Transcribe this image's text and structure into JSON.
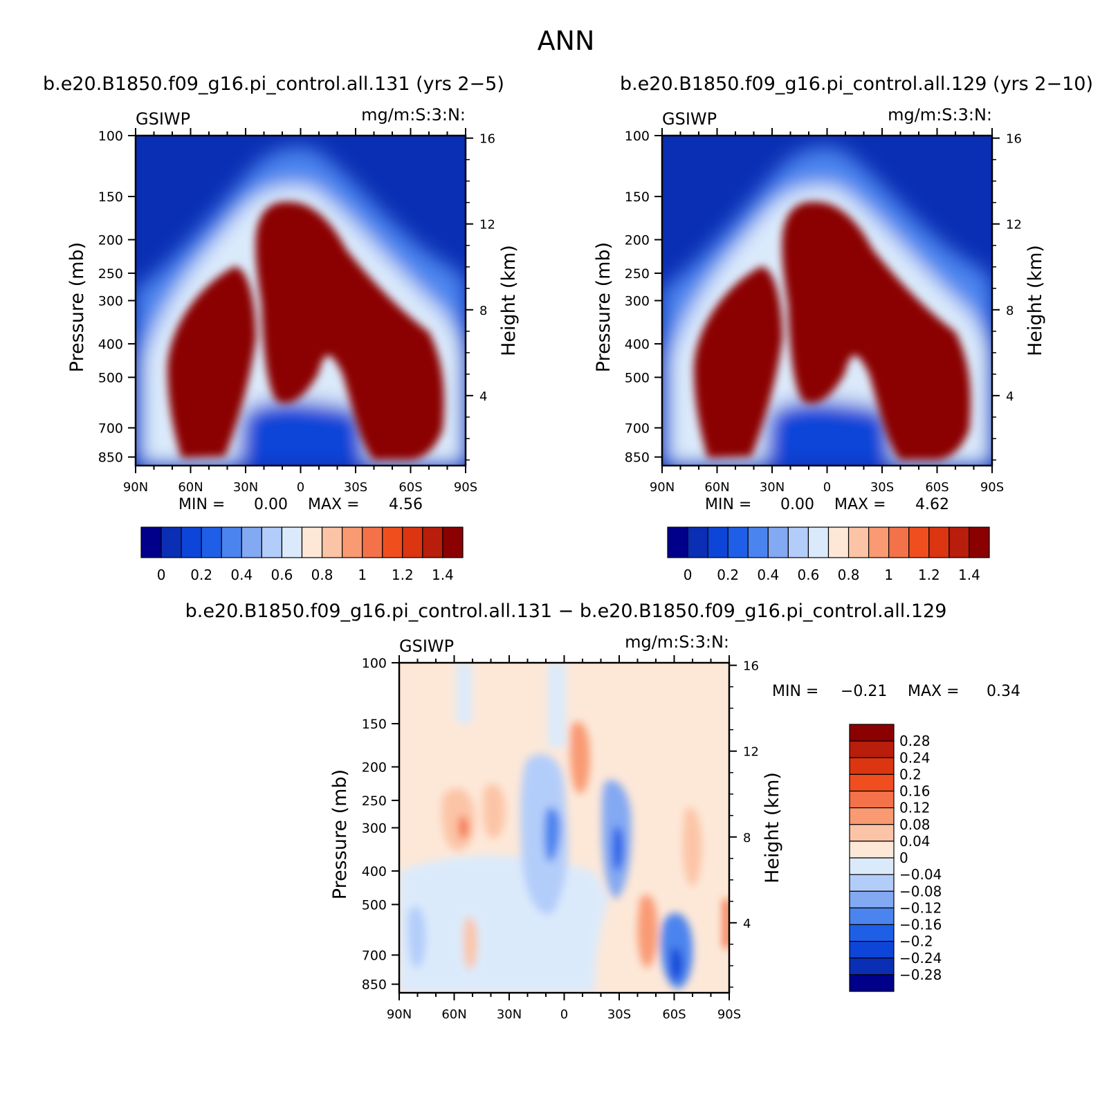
{
  "figure": {
    "title": "ANN"
  },
  "chart_data": [
    {
      "type": "heatmap",
      "title": "b.e20.B1850.f09_g16.pi_control.all.131 (yrs 2−5)",
      "left_label": "GSIWP",
      "right_label": "mg/m:S:3:N:",
      "xlabel": "",
      "ylabel": "Pressure (mb)",
      "y2label": "Height (km)",
      "x_ticks": [
        "90N",
        "60N",
        "30N",
        "0",
        "30S",
        "60S",
        "90S"
      ],
      "y_ticks": [
        100,
        150,
        200,
        250,
        300,
        400,
        500,
        700,
        850
      ],
      "y2_ticks": [
        16,
        12,
        8,
        4
      ],
      "min_label": "MIN =",
      "min_value": "0.00",
      "max_label": "MAX =",
      "max_value": "4.56",
      "colorbar": {
        "orientation": "horizontal",
        "labels": [
          "0",
          "0.2",
          "0.4",
          "0.6",
          "0.8",
          "1",
          "1.2",
          "1.4"
        ],
        "colors": [
          "#00008b",
          "#0a2fb4",
          "#0d45d8",
          "#1f5fe8",
          "#4b84ee",
          "#83a9f3",
          "#b3cdfa",
          "#dbeafb",
          "#fde8d8",
          "#fcc4a6",
          "#f99a73",
          "#f4724a",
          "#f04e1f",
          "#dc3511",
          "#b91d0b",
          "#8b0000"
        ]
      },
      "field_levels": [
        0,
        0.1,
        0.2,
        0.3,
        0.4,
        0.5,
        0.6,
        0.7,
        0.8,
        0.9,
        1.0,
        1.1,
        1.2,
        1.3,
        1.4
      ],
      "field_profile": {
        "max": 4.56,
        "description": "cloud ice water path: deep tropical maximum near equator 150-600 mb, midlatitude storm-track maxima 300-850 mb, minimum in lower tropics and stratosphere"
      }
    },
    {
      "type": "heatmap",
      "title": "b.e20.B1850.f09_g16.pi_control.all.129 (yrs 2−10)",
      "left_label": "GSIWP",
      "right_label": "mg/m:S:3:N:",
      "xlabel": "",
      "ylabel": "Pressure (mb)",
      "y2label": "Height (km)",
      "x_ticks": [
        "90N",
        "60N",
        "30N",
        "0",
        "30S",
        "60S",
        "90S"
      ],
      "y_ticks": [
        100,
        150,
        200,
        250,
        300,
        400,
        500,
        700,
        850
      ],
      "y2_ticks": [
        16,
        12,
        8,
        4
      ],
      "min_label": "MIN =",
      "min_value": "0.00",
      "max_label": "MAX =",
      "max_value": "4.62",
      "colorbar": {
        "orientation": "horizontal",
        "labels": [
          "0",
          "0.2",
          "0.4",
          "0.6",
          "0.8",
          "1",
          "1.2",
          "1.4"
        ],
        "colors": [
          "#00008b",
          "#0a2fb4",
          "#0d45d8",
          "#1f5fe8",
          "#4b84ee",
          "#83a9f3",
          "#b3cdfa",
          "#dbeafb",
          "#fde8d8",
          "#fcc4a6",
          "#f99a73",
          "#f4724a",
          "#f04e1f",
          "#dc3511",
          "#b91d0b",
          "#8b0000"
        ]
      },
      "field_levels": [
        0,
        0.1,
        0.2,
        0.3,
        0.4,
        0.5,
        0.6,
        0.7,
        0.8,
        0.9,
        1.0,
        1.1,
        1.2,
        1.3,
        1.4
      ],
      "field_profile": {
        "max": 4.62,
        "description": "nearly identical structure to run 131"
      }
    },
    {
      "type": "heatmap",
      "title": "b.e20.B1850.f09_g16.pi_control.all.131 − b.e20.B1850.f09_g16.pi_control.all.129",
      "left_label": "GSIWP",
      "right_label": "mg/m:S:3:N:",
      "xlabel": "",
      "ylabel": "Pressure (mb)",
      "y2label": "Height (km)",
      "x_ticks": [
        "90N",
        "60N",
        "30N",
        "0",
        "30S",
        "60S",
        "90S"
      ],
      "y_ticks": [
        100,
        150,
        200,
        250,
        300,
        400,
        500,
        700,
        850
      ],
      "y2_ticks": [
        16,
        12,
        8,
        4
      ],
      "min_label": "MIN =",
      "min_value": "−0.21",
      "max_label": "MAX =",
      "max_value": "0.34",
      "colorbar": {
        "orientation": "vertical",
        "labels": [
          "0.28",
          "0.24",
          "0.2",
          "0.16",
          "0.12",
          "0.08",
          "0.04",
          "0",
          "−0.04",
          "−0.08",
          "−0.12",
          "−0.16",
          "−0.2",
          "−0.24",
          "−0.28"
        ],
        "colors": [
          "#8b0000",
          "#b91d0b",
          "#dc3511",
          "#f04e1f",
          "#f4724a",
          "#f99a73",
          "#fcc4a6",
          "#fde8d8",
          "#dbeafb",
          "#b3cdfa",
          "#83a9f3",
          "#4b84ee",
          "#1f5fe8",
          "#0d45d8",
          "#0a2fb4",
          "#00008b"
        ]
      },
      "field_levels": [
        -0.28,
        -0.24,
        -0.2,
        -0.16,
        -0.12,
        -0.08,
        -0.04,
        0,
        0.04,
        0.08,
        0.12,
        0.16,
        0.2,
        0.24,
        0.28
      ],
      "field_profile": {
        "description": "small-amplitude differences; weak positive background, negative anomalies in tropics and near 60S, positive near 55N and 10S"
      }
    }
  ]
}
